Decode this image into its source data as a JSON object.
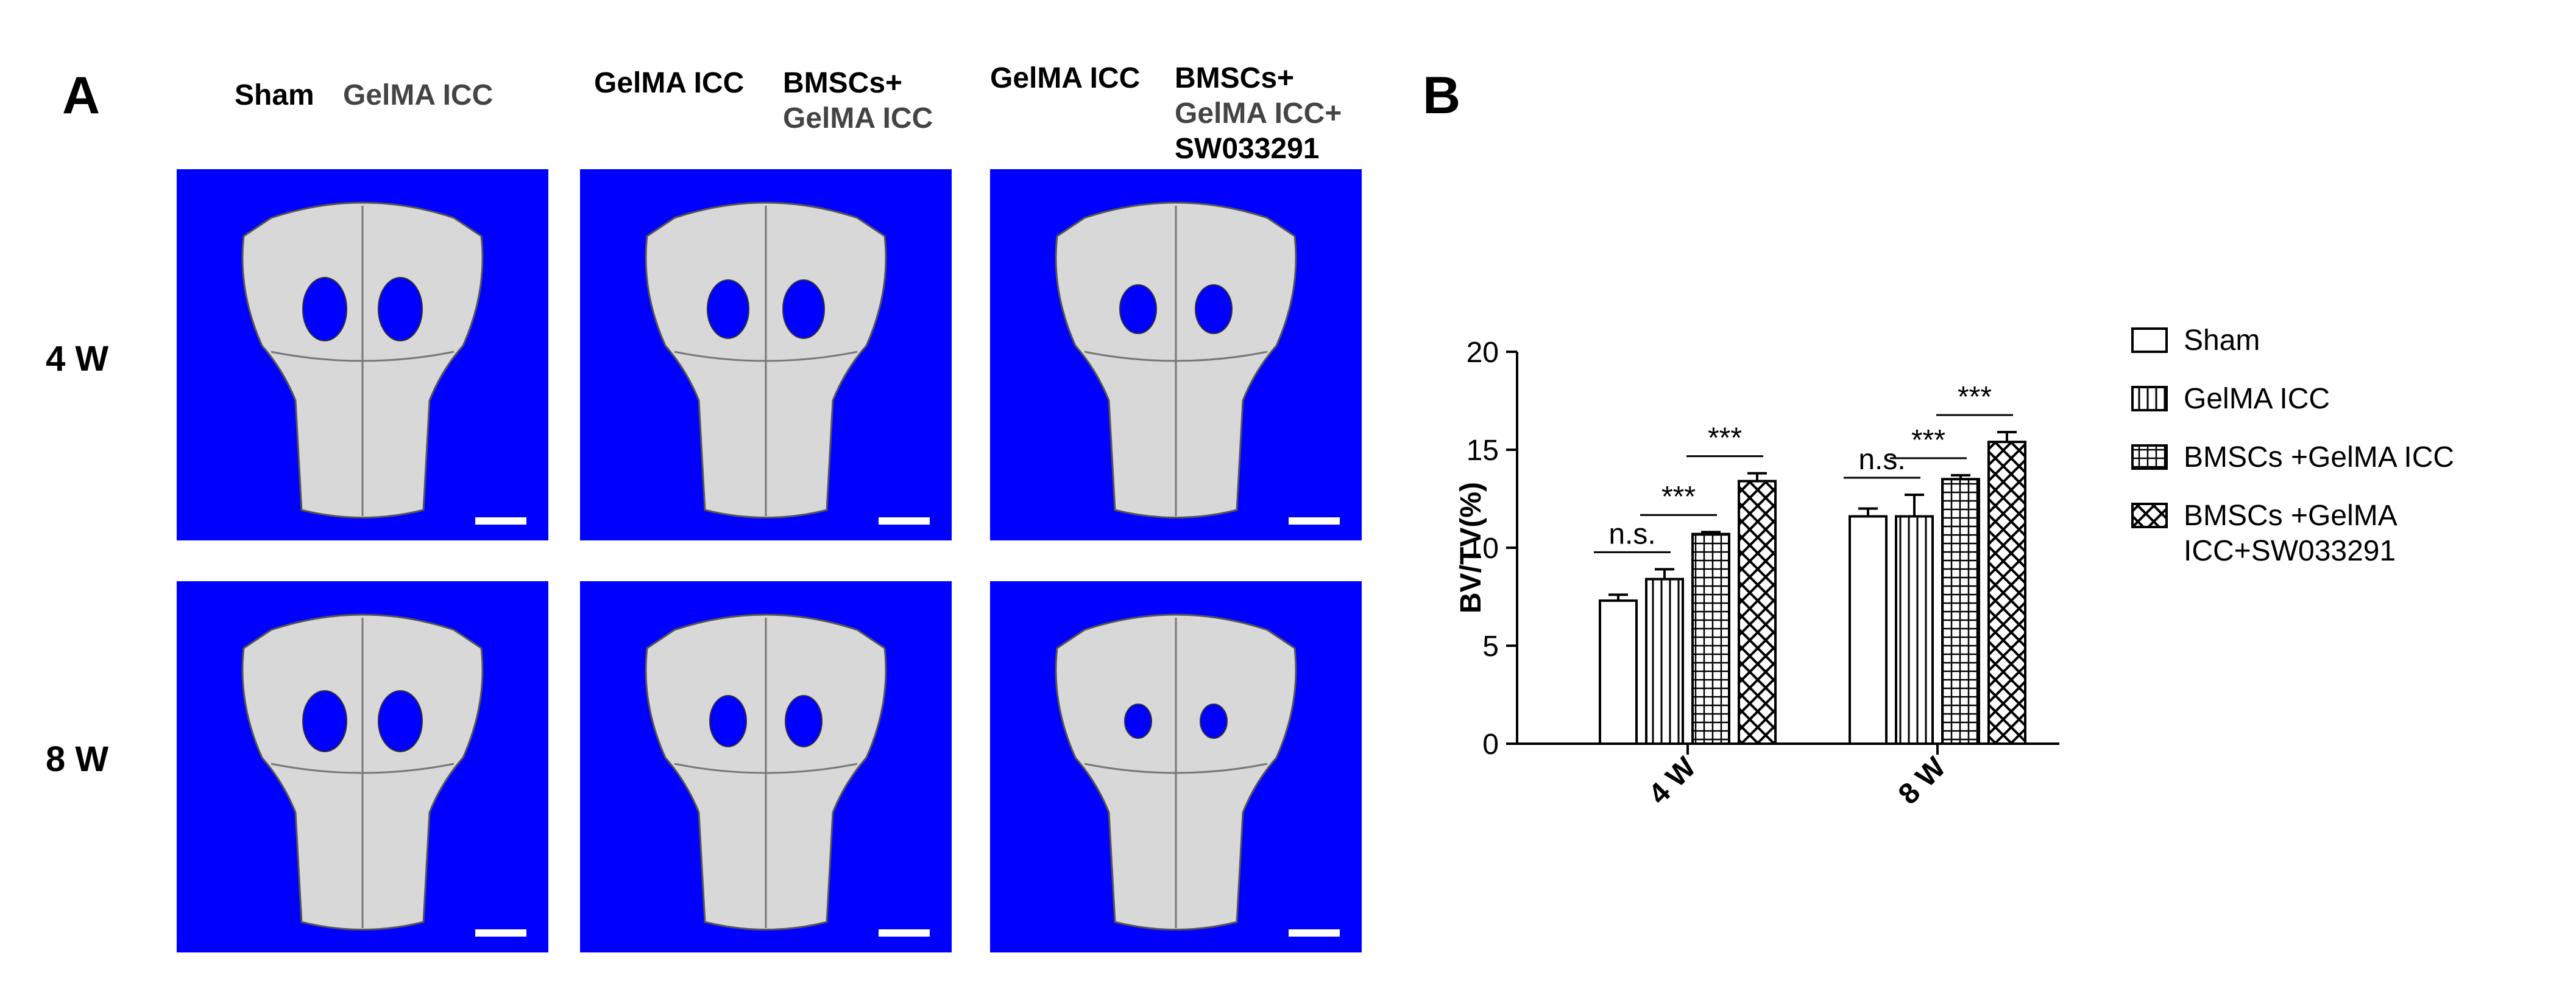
{
  "panel_a": {
    "letter": "A",
    "column_headers": [
      {
        "lines": [
          "Sham",
          "GelMA ICC"
        ]
      },
      {
        "lines": [
          "GelMA ICC",
          "BMSCs+",
          "GelMA ICC"
        ]
      },
      {
        "lines": [
          "GelMA ICC",
          "BMSCs+",
          "GelMA ICC+",
          "SW033291"
        ]
      }
    ],
    "row_labels": [
      "4 W",
      "8 W"
    ],
    "image_background": "#0000ff"
  },
  "panel_b": {
    "letter": "B"
  },
  "chart_data": {
    "type": "bar",
    "categories": [
      "4 W",
      "8 W"
    ],
    "ylabel": "BV/TV(%)",
    "xlabel": "",
    "ylim": [
      0,
      20
    ],
    "yticks": [
      0,
      5,
      10,
      15,
      20
    ],
    "series": [
      {
        "name": "Sham",
        "pattern": "open",
        "values": [
          7.3,
          11.6
        ],
        "errors": [
          0.3,
          0.4
        ]
      },
      {
        "name": "GelMA ICC",
        "pattern": "vertical-lines",
        "values": [
          8.4,
          11.6
        ],
        "errors": [
          0.5,
          1.1
        ]
      },
      {
        "name": "BMSCs +GelMA ICC",
        "pattern": "grid",
        "values": [
          10.7,
          13.5
        ],
        "errors": [
          0.1,
          0.2
        ]
      },
      {
        "name": "BMSCs +GelMA ICC+SW033291",
        "legend_lines": [
          "BMSCs +GelMA",
          "ICC+SW033291"
        ],
        "pattern": "crosshatch",
        "values": [
          13.4,
          15.4
        ],
        "errors": [
          0.4,
          0.5
        ]
      }
    ],
    "annotations": [
      {
        "category": "4 W",
        "from": 0,
        "to": 1,
        "text": "n.s."
      },
      {
        "category": "4 W",
        "from": 1,
        "to": 2,
        "text": "***"
      },
      {
        "category": "4 W",
        "from": 2,
        "to": 3,
        "text": "***"
      },
      {
        "category": "8 W",
        "from": 0,
        "to": 1,
        "text": "n.s."
      },
      {
        "category": "8 W",
        "from": 1,
        "to": 2,
        "text": "***"
      },
      {
        "category": "8 W",
        "from": 2,
        "to": 3,
        "text": "***"
      }
    ],
    "legend_position": "right",
    "grid": false
  }
}
